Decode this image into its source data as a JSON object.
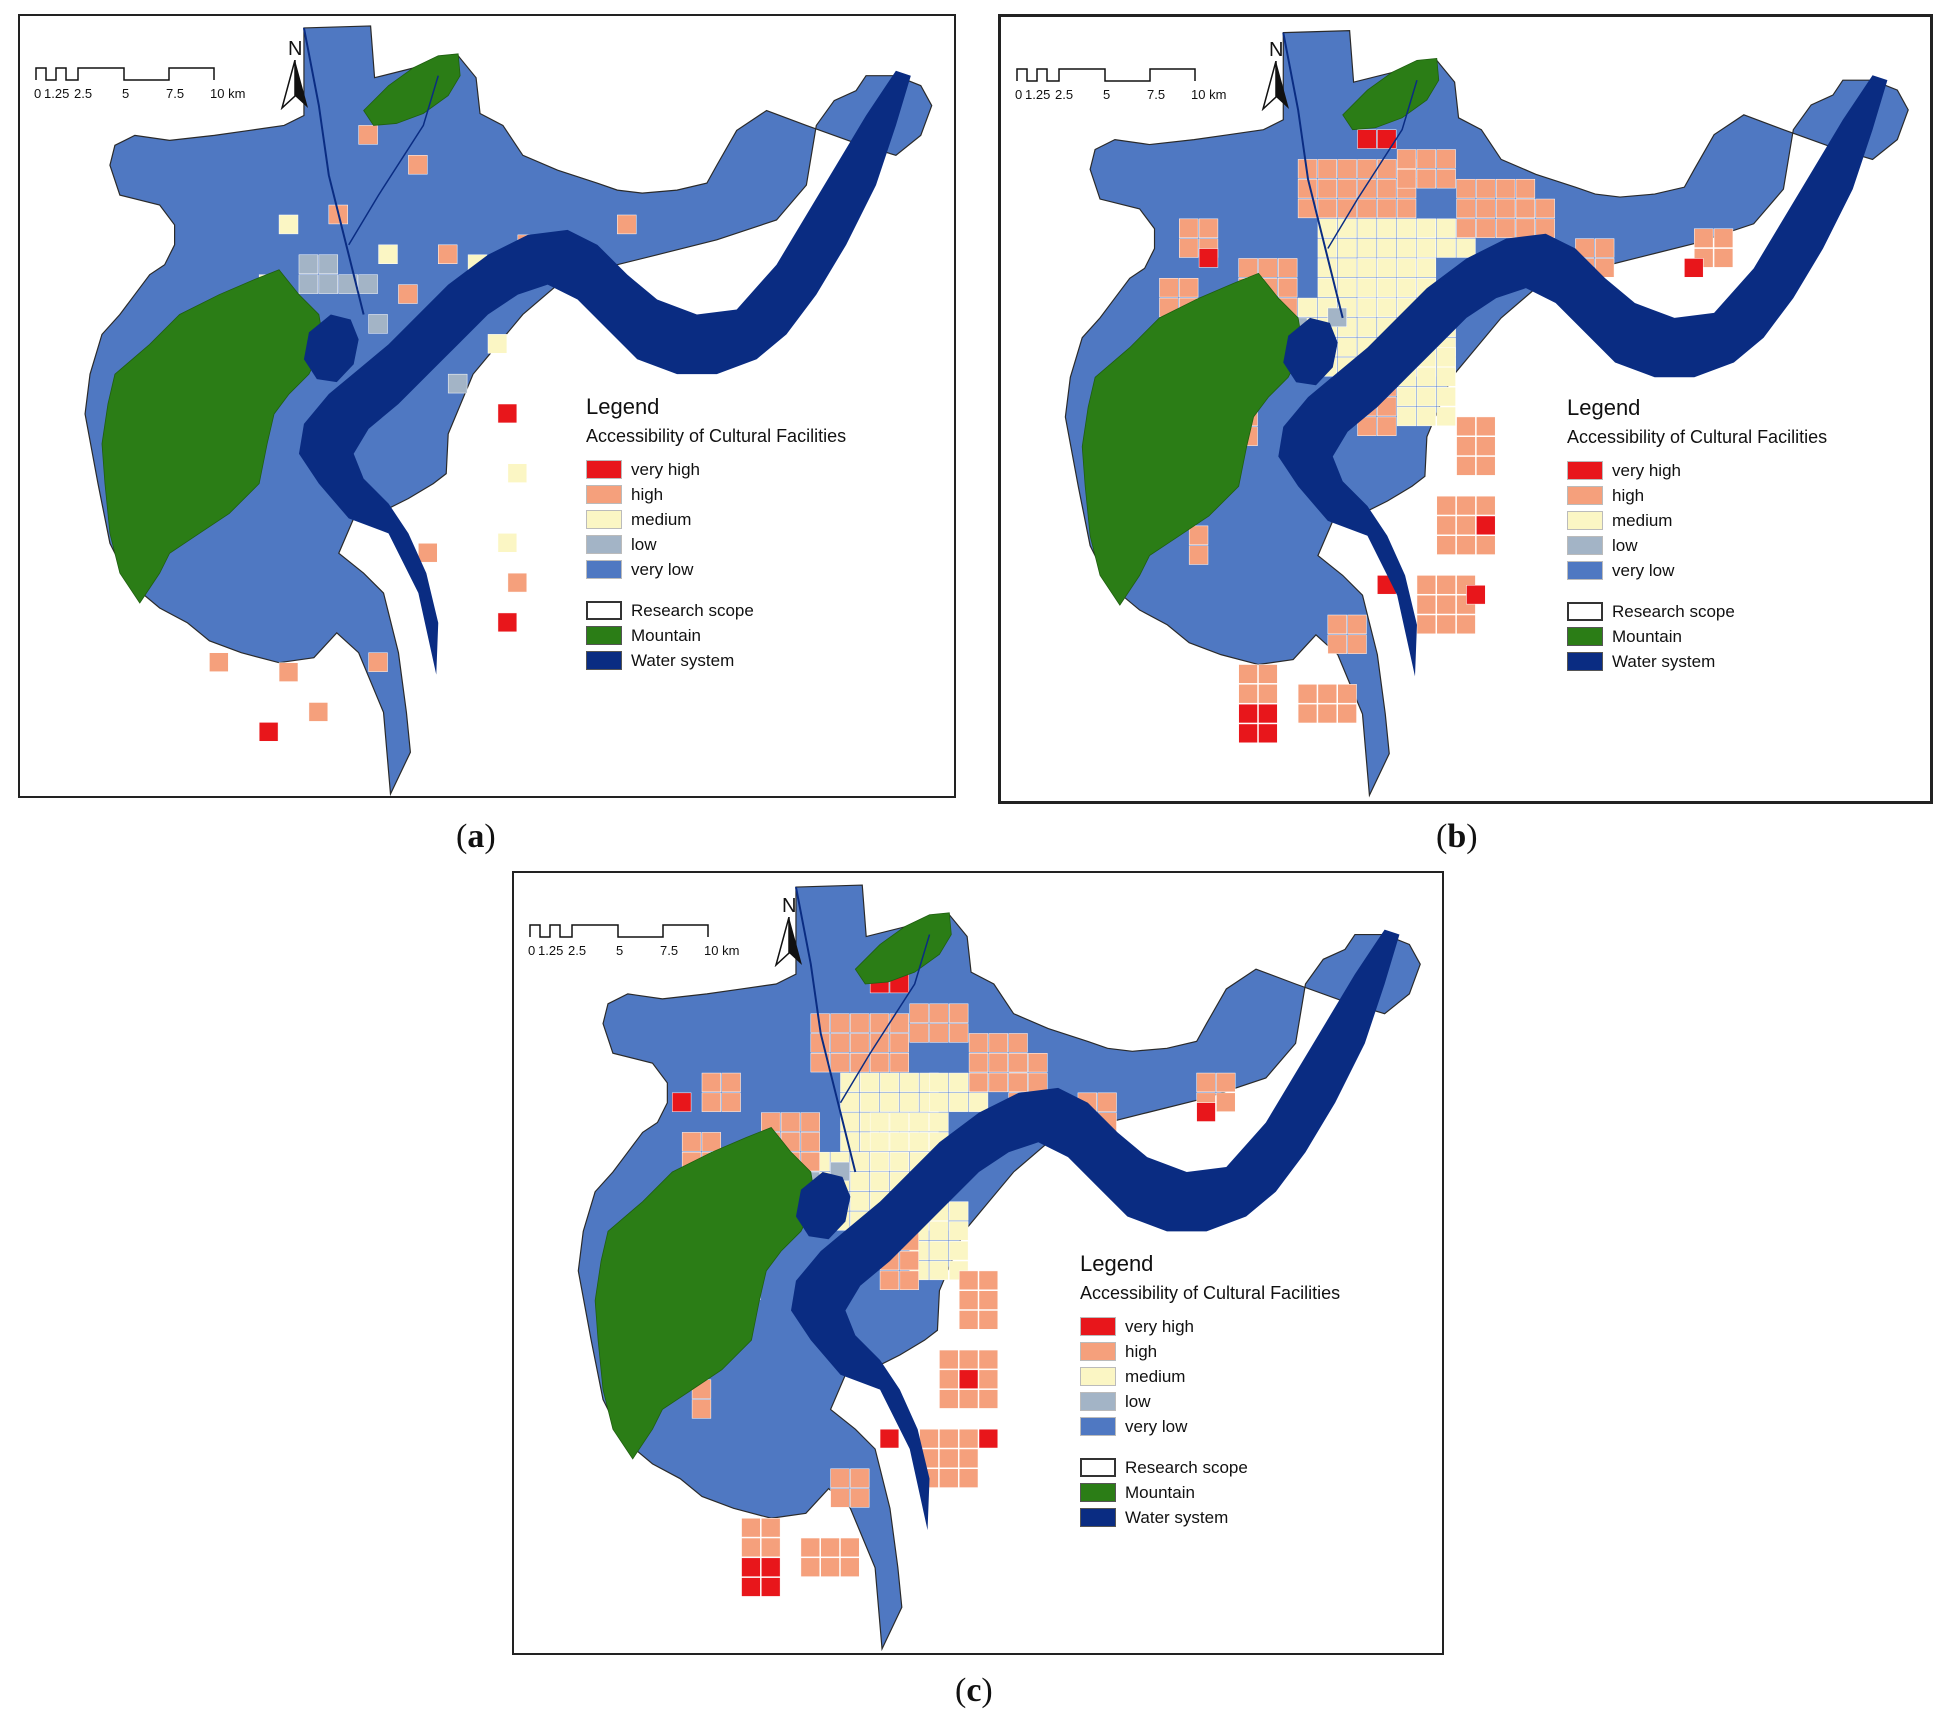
{
  "figure": {
    "panels": [
      {
        "id": "a",
        "label_open": "(",
        "label_letter": "a",
        "label_close": ")"
      },
      {
        "id": "b",
        "label_open": "(",
        "label_letter": "b",
        "label_close": ")"
      },
      {
        "id": "c",
        "label_open": "(",
        "label_letter": "c",
        "label_close": ")"
      }
    ]
  },
  "map": {
    "north_label": "N",
    "scale_labels": [
      "0",
      "1.25",
      "2.5",
      "5",
      "7.5",
      "10 km"
    ],
    "legend": {
      "title": "Legend",
      "subtitle": "Accessibility of Cultural Facilities",
      "classes": [
        {
          "label": "very high",
          "color": "#e8161b"
        },
        {
          "label": "high",
          "color": "#f5a07c"
        },
        {
          "label": "medium",
          "color": "#fbf6c4"
        },
        {
          "label": "low",
          "color": "#a3b4c6"
        },
        {
          "label": "very low",
          "color": "#4f78c2"
        }
      ],
      "features": [
        {
          "label": "Research scope",
          "color": "#ffffff"
        },
        {
          "label": "Mountain",
          "color": "#2b7d16"
        },
        {
          "label": "Water system",
          "color": "#0a2c82"
        }
      ]
    }
  }
}
